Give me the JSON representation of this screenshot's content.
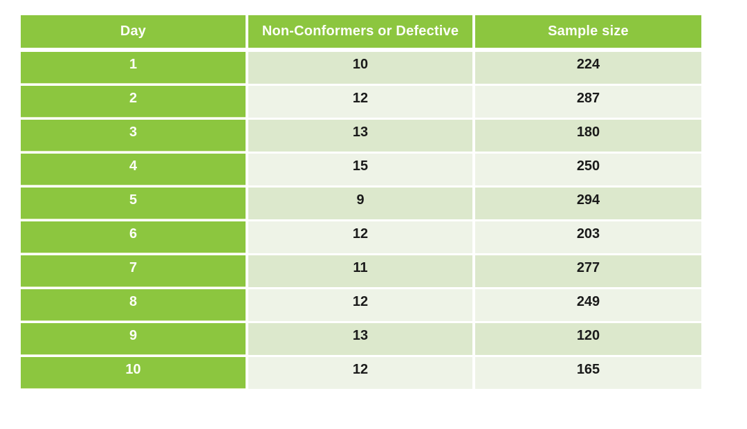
{
  "table": {
    "columns": [
      {
        "label": "Day"
      },
      {
        "label": "Non-Conformers or Defective"
      },
      {
        "label": "Sample size"
      }
    ],
    "rows": [
      {
        "day": "1",
        "defective": "10",
        "sample_size": "224"
      },
      {
        "day": "2",
        "defective": "12",
        "sample_size": "287"
      },
      {
        "day": "3",
        "defective": "13",
        "sample_size": "180"
      },
      {
        "day": "4",
        "defective": "15",
        "sample_size": "250"
      },
      {
        "day": "5",
        "defective": "9",
        "sample_size": "294"
      },
      {
        "day": "6",
        "defective": "12",
        "sample_size": "203"
      },
      {
        "day": "7",
        "defective": "11",
        "sample_size": "277"
      },
      {
        "day": "8",
        "defective": "12",
        "sample_size": "249"
      },
      {
        "day": "9",
        "defective": "13",
        "sample_size": "120"
      },
      {
        "day": "10",
        "defective": "12",
        "sample_size": "165"
      }
    ]
  },
  "colors": {
    "header_green": "#8CC63F",
    "row_odd_light_green": "#DCE8CC",
    "row_even_lighter_green": "#EEF3E7",
    "header_text": "#FDFEF8",
    "cell_text": "#1A1A1A",
    "page_background": "#FFFFFF"
  },
  "chart_data": {
    "type": "table",
    "title": "",
    "columns": [
      "Day",
      "Non-Conformers or Defective",
      "Sample size"
    ],
    "rows": [
      [
        1,
        10,
        224
      ],
      [
        2,
        12,
        287
      ],
      [
        3,
        13,
        180
      ],
      [
        4,
        15,
        250
      ],
      [
        5,
        9,
        294
      ],
      [
        6,
        12,
        203
      ],
      [
        7,
        11,
        277
      ],
      [
        8,
        12,
        249
      ],
      [
        9,
        13,
        120
      ],
      [
        10,
        12,
        165
      ]
    ]
  }
}
